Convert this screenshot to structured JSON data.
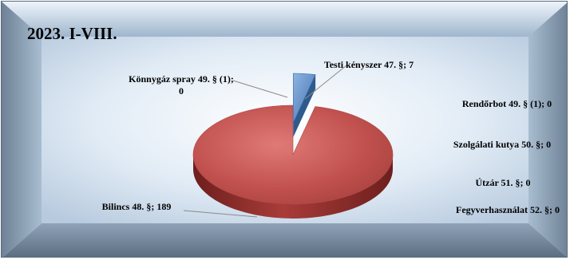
{
  "chart_data": {
    "type": "pie",
    "title": "2023. I-VIII.",
    "slices": [
      {
        "label": "Testi kényszer 47. §; 7",
        "category": "Testi kényszer 47. §",
        "value": 7,
        "color": "#4f81bd"
      },
      {
        "label": "Rendőrbot 49. § (1); 0",
        "category": "Rendőrbot 49. § (1)",
        "value": 0
      },
      {
        "label": "Szolgálati kutya 50. §; 0",
        "category": "Szolgálati kutya 50. §",
        "value": 0
      },
      {
        "label": "Útzár 51. §; 0",
        "category": "Útzár 51. §",
        "value": 0
      },
      {
        "label": "Fegyverhasználat 52. §; 0",
        "category": "Fegyverhasználat 52. §",
        "value": 0
      },
      {
        "label": "Bilincs 48. §; 189",
        "category": "Bilincs 48. §",
        "value": 189,
        "color": "#c0504d"
      },
      {
        "label": "Könnygáz spray 49. § (1); 0",
        "category": "Könnygáz spray 49. § (1)",
        "value": 0
      }
    ]
  }
}
